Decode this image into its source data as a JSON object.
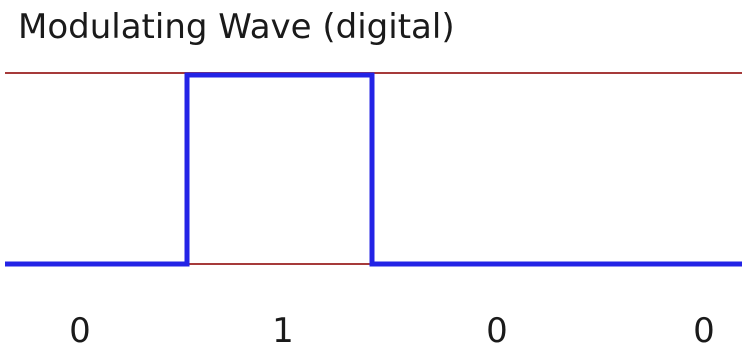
{
  "title": "Modulating Wave (digital)",
  "bits": [
    "0",
    "1",
    "0",
    "0"
  ],
  "colors": {
    "reference_line": "#a63a3a",
    "wave": "#2323e6",
    "text": "#1a1a1a",
    "background": "#ffffff"
  }
}
